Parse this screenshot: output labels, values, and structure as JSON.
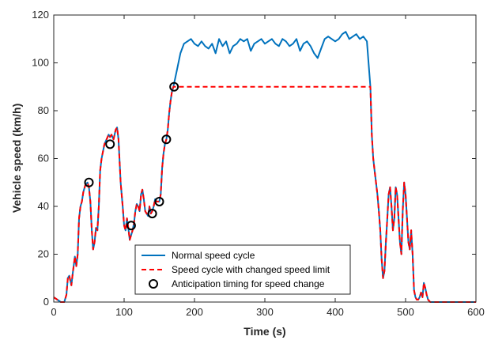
{
  "chart_data": {
    "type": "line",
    "xlabel": "Time (s)",
    "ylabel": "Vehicle speed (km/h)",
    "xlim": [
      0,
      600
    ],
    "ylim": [
      0,
      120
    ],
    "xticks": [
      0,
      100,
      200,
      300,
      400,
      500,
      600
    ],
    "yticks": [
      0,
      20,
      40,
      60,
      80,
      100,
      120
    ],
    "grid": false,
    "legend_position": "bottom-center",
    "series": [
      {
        "name": "Normal speed cycle",
        "color": "#0072BD",
        "style": "solid",
        "x": [
          0,
          5,
          10,
          15,
          18,
          20,
          22,
          25,
          27,
          30,
          32,
          34,
          36,
          38,
          40,
          42,
          45,
          48,
          50,
          52,
          54,
          56,
          58,
          60,
          62,
          64,
          66,
          68,
          70,
          72,
          75,
          78,
          80,
          82,
          85,
          88,
          90,
          92,
          95,
          98,
          100,
          102,
          104,
          106,
          108,
          110,
          112,
          114,
          116,
          118,
          120,
          122,
          124,
          126,
          128,
          130,
          132,
          134,
          136,
          138,
          140,
          142,
          144,
          146,
          148,
          150,
          152,
          154,
          156,
          158,
          160,
          162,
          164,
          166,
          168,
          170,
          175,
          180,
          185,
          190,
          195,
          200,
          205,
          210,
          215,
          220,
          225,
          230,
          235,
          240,
          245,
          250,
          255,
          260,
          265,
          270,
          275,
          280,
          285,
          290,
          295,
          300,
          305,
          310,
          315,
          320,
          325,
          330,
          335,
          340,
          345,
          350,
          355,
          360,
          365,
          370,
          375,
          380,
          385,
          390,
          395,
          400,
          405,
          410,
          415,
          420,
          425,
          430,
          435,
          440,
          445,
          450,
          452,
          454,
          456,
          458,
          460,
          462,
          464,
          466,
          468,
          470,
          472,
          474,
          476,
          478,
          480,
          482,
          484,
          486,
          488,
          490,
          492,
          494,
          496,
          498,
          500,
          502,
          504,
          506,
          508,
          510,
          512,
          514,
          516,
          518,
          520,
          522,
          524,
          526,
          528,
          530,
          532,
          535,
          540,
          545,
          550,
          560,
          570,
          580,
          590,
          600
        ],
        "y": [
          2,
          1,
          0,
          0,
          3,
          10,
          11,
          7,
          12,
          19,
          15,
          20,
          35,
          40,
          42,
          46,
          49,
          50,
          48,
          42,
          30,
          22,
          25,
          31,
          30,
          40,
          55,
          60,
          63,
          66,
          68,
          70,
          69,
          70,
          68,
          72,
          73,
          68,
          50,
          40,
          32,
          30,
          35,
          31,
          26,
          28,
          30,
          33,
          38,
          41,
          40,
          38,
          45,
          47,
          43,
          38,
          37,
          36,
          40,
          37,
          38,
          40,
          43,
          42,
          42,
          42,
          45,
          56,
          62,
          66,
          68,
          72,
          79,
          84,
          88,
          90,
          97,
          104,
          108,
          109,
          110,
          108,
          107,
          109,
          107,
          106,
          108,
          104,
          110,
          107,
          109,
          104,
          107,
          108,
          110,
          109,
          110,
          105,
          108,
          109,
          110,
          108,
          109,
          110,
          108,
          107,
          110,
          109,
          107,
          108,
          110,
          105,
          108,
          109,
          107,
          104,
          102,
          106,
          110,
          111,
          110,
          109,
          110,
          112,
          113,
          110,
          111,
          112,
          110,
          111,
          109,
          90,
          70,
          60,
          55,
          50,
          45,
          38,
          30,
          18,
          10,
          13,
          25,
          35,
          45,
          48,
          40,
          30,
          35,
          48,
          45,
          35,
          25,
          20,
          38,
          50,
          45,
          35,
          25,
          22,
          30,
          20,
          5,
          2,
          1,
          1,
          2,
          4,
          2,
          8,
          6,
          3,
          1,
          0,
          0,
          0,
          0,
          0,
          0,
          0,
          0,
          0
        ]
      },
      {
        "name": "Speed cycle with changed speed limit",
        "color": "#FF0000",
        "style": "dashed",
        "x": [
          0,
          5,
          10,
          15,
          18,
          20,
          22,
          25,
          27,
          30,
          32,
          34,
          36,
          38,
          40,
          42,
          45,
          48,
          50,
          52,
          54,
          56,
          58,
          60,
          62,
          64,
          66,
          68,
          70,
          72,
          75,
          78,
          80,
          82,
          85,
          88,
          90,
          92,
          95,
          98,
          100,
          102,
          104,
          106,
          108,
          110,
          112,
          114,
          116,
          118,
          120,
          122,
          124,
          126,
          128,
          130,
          132,
          134,
          136,
          138,
          140,
          142,
          144,
          146,
          148,
          150,
          152,
          154,
          156,
          158,
          160,
          162,
          164,
          166,
          168,
          170,
          175,
          180,
          185,
          190,
          195,
          200,
          205,
          210,
          215,
          220,
          225,
          230,
          235,
          240,
          245,
          250,
          255,
          260,
          265,
          270,
          275,
          280,
          285,
          290,
          295,
          300,
          305,
          310,
          315,
          320,
          325,
          330,
          335,
          340,
          345,
          350,
          355,
          360,
          365,
          370,
          375,
          380,
          385,
          390,
          395,
          400,
          405,
          410,
          415,
          420,
          425,
          430,
          435,
          440,
          445,
          450,
          452,
          454,
          456,
          458,
          460,
          462,
          464,
          466,
          468,
          470,
          472,
          474,
          476,
          478,
          480,
          482,
          484,
          486,
          488,
          490,
          492,
          494,
          496,
          498,
          500,
          502,
          504,
          506,
          508,
          510,
          512,
          514,
          516,
          518,
          520,
          522,
          524,
          526,
          528,
          530,
          532,
          535,
          540,
          545,
          550,
          560,
          570,
          580,
          590,
          600
        ],
        "y": [
          2,
          1,
          0,
          0,
          3,
          10,
          11,
          7,
          12,
          19,
          15,
          20,
          35,
          40,
          42,
          46,
          49,
          50,
          48,
          42,
          30,
          22,
          25,
          31,
          30,
          40,
          55,
          60,
          63,
          66,
          68,
          70,
          69,
          70,
          68,
          72,
          73,
          68,
          50,
          40,
          32,
          30,
          35,
          31,
          26,
          28,
          30,
          33,
          38,
          41,
          40,
          38,
          45,
          47,
          43,
          38,
          37,
          36,
          40,
          37,
          38,
          40,
          43,
          42,
          42,
          42,
          45,
          56,
          62,
          66,
          68,
          72,
          79,
          84,
          88,
          90,
          90,
          90,
          90,
          90,
          90,
          90,
          90,
          90,
          90,
          90,
          90,
          90,
          90,
          90,
          90,
          90,
          90,
          90,
          90,
          90,
          90,
          90,
          90,
          90,
          90,
          90,
          90,
          90,
          90,
          90,
          90,
          90,
          90,
          90,
          90,
          90,
          90,
          90,
          90,
          90,
          90,
          90,
          90,
          90,
          90,
          90,
          90,
          90,
          90,
          90,
          90,
          90,
          90,
          90,
          90,
          90,
          70,
          60,
          55,
          50,
          45,
          38,
          30,
          18,
          10,
          13,
          25,
          35,
          45,
          48,
          40,
          30,
          35,
          48,
          45,
          35,
          25,
          20,
          38,
          50,
          45,
          35,
          25,
          22,
          30,
          20,
          5,
          2,
          1,
          1,
          2,
          4,
          2,
          8,
          6,
          3,
          1,
          0,
          0,
          0,
          0,
          0,
          0,
          0,
          0,
          0
        ]
      },
      {
        "name": "Anticipation timing for speed change",
        "color": "#000000",
        "style": "markers",
        "x": [
          50,
          80,
          110,
          140,
          150,
          160,
          171
        ],
        "y": [
          50,
          66,
          32,
          37,
          42,
          68,
          90
        ]
      }
    ]
  }
}
